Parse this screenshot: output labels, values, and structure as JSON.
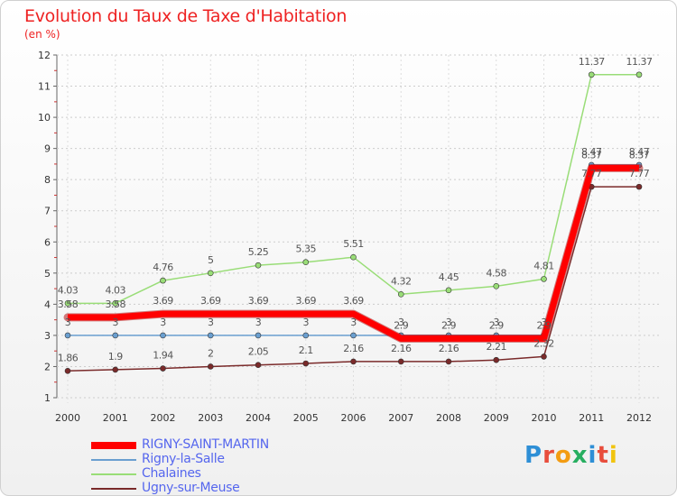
{
  "title": "Evolution du Taux de Taxe d'Habitation",
  "subtitle": "(en %)",
  "logo": {
    "text": "Proxiti",
    "colors": [
      "#2e8fd6",
      "#e84d3c",
      "#f39c12",
      "#27ae60",
      "#2e8fd6",
      "#e84d3c",
      "#f1c40f"
    ]
  },
  "chart_data": {
    "type": "line",
    "title": "Evolution du Taux de Taxe d'Habitation",
    "ylabel": "(en %)",
    "x": [
      "2000",
      "2001",
      "2002",
      "2003",
      "2004",
      "2005",
      "2006",
      "2007",
      "2008",
      "2009",
      "2010",
      "2011",
      "2012"
    ],
    "ylim": [
      1,
      12
    ],
    "yticks": [
      "1",
      "2",
      "3",
      "4",
      "5",
      "6",
      "7",
      "8",
      "9",
      "10",
      "11",
      "12"
    ],
    "legend_position": "bottom-left",
    "series": [
      {
        "name": "RIGNY-SAINT-MARTIN",
        "color": "#ff0000",
        "width": 7,
        "values": [
          3.58,
          3.58,
          3.69,
          3.69,
          3.69,
          3.69,
          3.69,
          2.9,
          2.9,
          2.9,
          2.9,
          8.37,
          8.37
        ],
        "labels": [
          "3.58",
          "3.58",
          "3.69",
          "3.69",
          "3.69",
          "3.69",
          "3.69",
          "2.9",
          "2.9",
          "2.9",
          "2.9",
          "8.37",
          "8.37"
        ]
      },
      {
        "name": "Rigny-la-Salle",
        "color": "#6a9fd0",
        "width": 1.5,
        "values": [
          3,
          3,
          3,
          3,
          3,
          3,
          3,
          3,
          3,
          3,
          3,
          8.47,
          8.47
        ],
        "labels": [
          "3",
          "3",
          "3",
          "3",
          "3",
          "3",
          "3",
          "3",
          "3",
          "3",
          "3",
          "8.47",
          "8.47"
        ]
      },
      {
        "name": "Chalaines",
        "color": "#99dd77",
        "width": 1.5,
        "values": [
          4.03,
          4.03,
          4.76,
          5,
          5.25,
          5.35,
          5.51,
          4.32,
          4.45,
          4.58,
          4.81,
          11.37,
          11.37
        ],
        "labels": [
          "4.03",
          "4.03",
          "4.76",
          "5",
          "5.25",
          "5.35",
          "5.51",
          "4.32",
          "4.45",
          "4.58",
          "4.81",
          "11.37",
          "11.37"
        ]
      },
      {
        "name": "Ugny-sur-Meuse",
        "color": "#7a2a2a",
        "width": 1.5,
        "values": [
          1.86,
          1.9,
          1.94,
          2,
          2.05,
          2.1,
          2.16,
          2.16,
          2.16,
          2.21,
          2.32,
          7.77,
          7.77
        ],
        "labels": [
          "1.86",
          "1.9",
          "1.94",
          "2",
          "2.05",
          "2.1",
          "2.16",
          "2.16",
          "2.16",
          "2.21",
          "2.32",
          "7.77",
          "7.77"
        ]
      }
    ]
  }
}
